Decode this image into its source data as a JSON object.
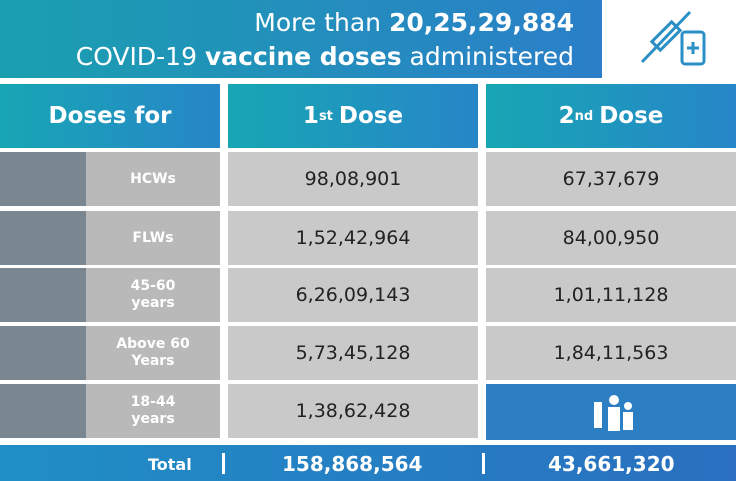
{
  "header": {
    "line1": [
      "More than",
      "20,25,29,884"
    ],
    "line2": [
      "COVID-19",
      "vaccine doses",
      "administered"
    ]
  },
  "table": {
    "columns": [
      "Doses for",
      [
        "1",
        "st",
        "Dose"
      ],
      [
        "2",
        "nd",
        "Dose"
      ]
    ],
    "rows": [
      [
        "HCWs",
        "98,08,901",
        "67,37,679"
      ],
      [
        "FLWs",
        "1,52,42,964",
        "84,00,950"
      ],
      [
        [
          "45-60",
          "years"
        ],
        "6,26,09,143",
        "1,01,11,128"
      ],
      [
        [
          "Above 60",
          "Years"
        ],
        "5,73,45,128",
        "1,84,11,563"
      ],
      [
        [
          "18-44",
          "years"
        ],
        "1,38,62,428",
        null
      ]
    ],
    "total": [
      "Total",
      "158,868,564",
      "43,661,320"
    ]
  }
}
